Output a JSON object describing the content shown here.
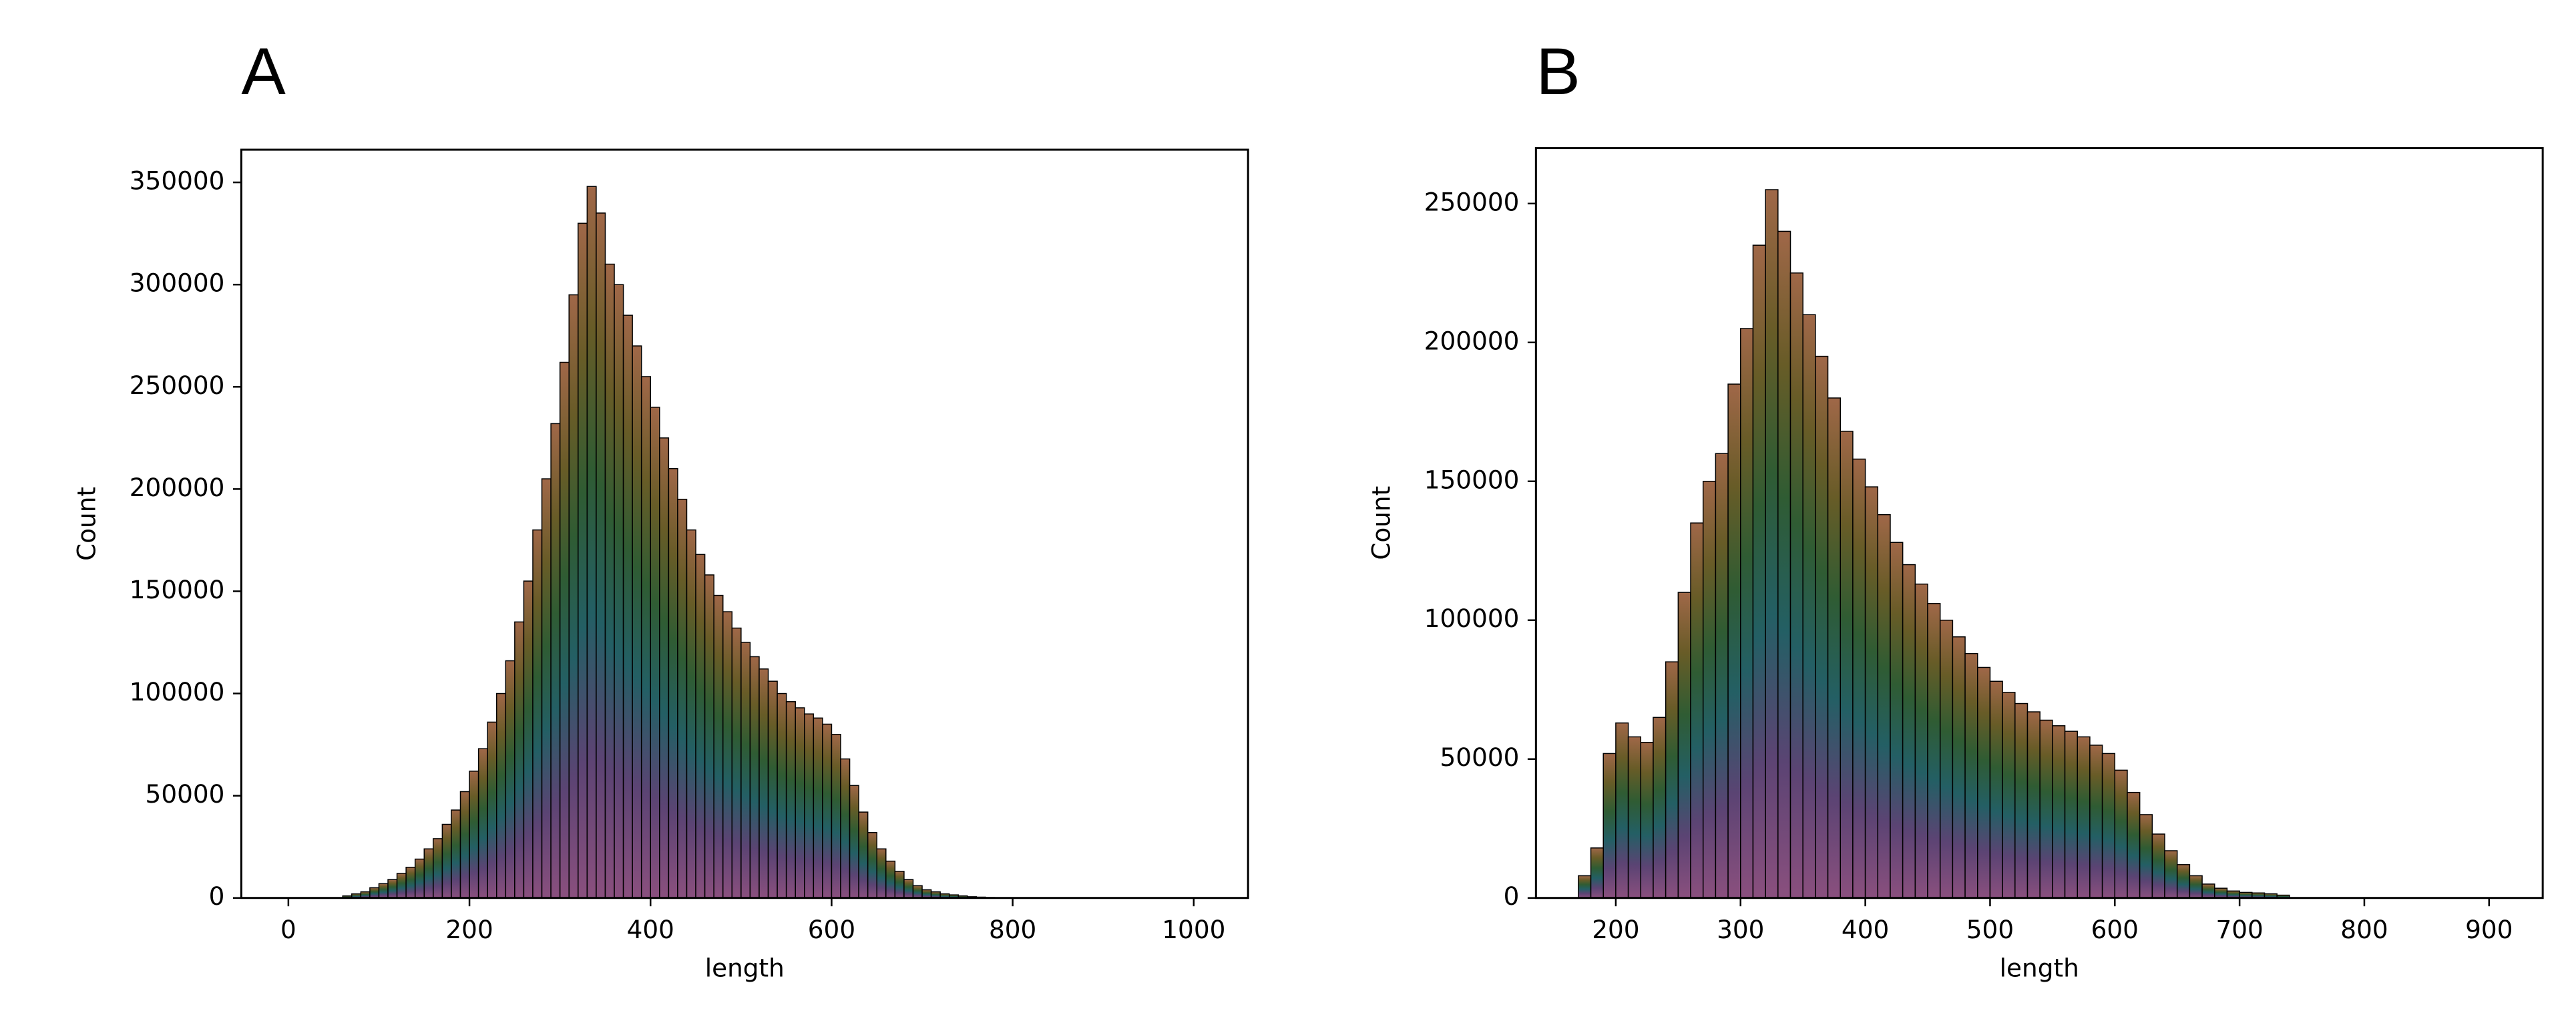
{
  "chart_data": [
    {
      "type": "histogram",
      "title": "A",
      "x_label": "length",
      "y_label": "Count",
      "bins": [
        60,
        70,
        80,
        90,
        100,
        110,
        120,
        130,
        140,
        150,
        160,
        170,
        180,
        190,
        200,
        210,
        220,
        230,
        240,
        250,
        260,
        270,
        280,
        290,
        300,
        310,
        320,
        330,
        340,
        350,
        360,
        370,
        380,
        390,
        400,
        410,
        420,
        430,
        440,
        450,
        460,
        470,
        480,
        490,
        500,
        510,
        520,
        530,
        540,
        550,
        560,
        570,
        580,
        590,
        600,
        610,
        620,
        630,
        640,
        650,
        660,
        670,
        680,
        690,
        700,
        710,
        720,
        730,
        740,
        750,
        760,
        770,
        780,
        790,
        800
      ],
      "counts": [
        1000,
        2000,
        3000,
        5000,
        7000,
        9000,
        12000,
        15000,
        19000,
        24000,
        29000,
        36000,
        43000,
        52000,
        62000,
        73000,
        86000,
        100000,
        116000,
        135000,
        155000,
        180000,
        205000,
        232000,
        262000,
        295000,
        330000,
        348000,
        335000,
        310000,
        300000,
        285000,
        270000,
        255000,
        240000,
        225000,
        210000,
        195000,
        180000,
        168000,
        158000,
        148000,
        140000,
        132000,
        125000,
        118000,
        112000,
        106000,
        100000,
        96000,
        93000,
        90000,
        88000,
        85000,
        80000,
        68000,
        55000,
        42000,
        32000,
        24000,
        18000,
        13000,
        9000,
        6000,
        4000,
        3000,
        2000,
        1500,
        1000,
        600,
        400,
        200,
        100,
        50
      ],
      "colors": [
        "#b86aa8",
        "#7a5a9a",
        "#2f7f86",
        "#3f7a44",
        "#8a7a34",
        "#d58a60"
      ],
      "edge_color": "#000000",
      "xlim": [
        -52,
        1060
      ],
      "xticks": [
        0,
        200,
        400,
        600,
        800,
        1000
      ],
      "ylim": [
        0,
        366000
      ],
      "yticks": [
        0,
        50000,
        100000,
        150000,
        200000,
        250000,
        300000,
        350000
      ]
    },
    {
      "type": "histogram",
      "title": "B",
      "x_label": "length",
      "y_label": "Count",
      "bins": [
        170,
        180,
        190,
        200,
        210,
        220,
        230,
        240,
        250,
        260,
        270,
        280,
        290,
        300,
        310,
        320,
        330,
        340,
        350,
        360,
        370,
        380,
        390,
        400,
        410,
        420,
        430,
        440,
        450,
        460,
        470,
        480,
        490,
        500,
        510,
        520,
        530,
        540,
        550,
        560,
        570,
        580,
        590,
        600,
        610,
        620,
        630,
        640,
        650,
        660,
        670,
        680,
        690,
        700,
        710,
        720,
        730,
        740
      ],
      "counts": [
        8000,
        18000,
        52000,
        63000,
        58000,
        56000,
        65000,
        85000,
        110000,
        135000,
        150000,
        160000,
        185000,
        205000,
        235000,
        255000,
        240000,
        225000,
        210000,
        195000,
        180000,
        168000,
        158000,
        148000,
        138000,
        128000,
        120000,
        113000,
        106000,
        100000,
        94000,
        88000,
        83000,
        78000,
        74000,
        70000,
        67000,
        64000,
        62000,
        60000,
        58000,
        55000,
        52000,
        46000,
        38000,
        30000,
        23000,
        17000,
        12000,
        8000,
        5000,
        3500,
        2500,
        2000,
        1800,
        1500,
        1000
      ],
      "colors": [
        "#b86aa8",
        "#7a5a9a",
        "#2f7f86",
        "#3f7a44",
        "#8a7a34",
        "#d58a60"
      ],
      "edge_color": "#000000",
      "xlim": [
        136,
        943
      ],
      "xticks": [
        200,
        300,
        400,
        500,
        600,
        700,
        800,
        900
      ],
      "ylim": [
        0,
        270000
      ],
      "yticks": [
        0,
        50000,
        100000,
        150000,
        200000,
        250000
      ]
    }
  ]
}
